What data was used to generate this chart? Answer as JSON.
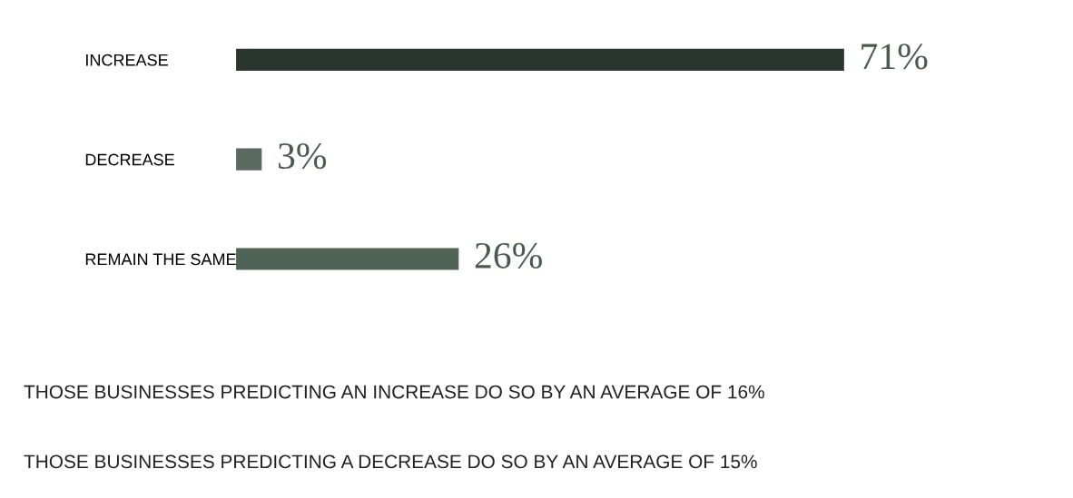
{
  "chart_data": {
    "type": "bar",
    "orientation": "horizontal",
    "categories": [
      "INCREASE",
      "DECREASE",
      "REMAIN THE SAME"
    ],
    "values": [
      71,
      3,
      26
    ],
    "colors": [
      "#2b3530",
      "#5a6a60",
      "#4f6356"
    ],
    "value_labels": [
      "71%",
      "3%",
      "26%"
    ],
    "tick_labels": "y",
    "grid": false,
    "legend": false,
    "annotations": [
      "THOSE BUSINESSES PREDICTING AN INCREASE DO SO BY AN AVERAGE OF 16%",
      "THOSE BUSINESSES PREDICTING A DECREASE DO SO BY AN AVERAGE OF 15%"
    ]
  }
}
